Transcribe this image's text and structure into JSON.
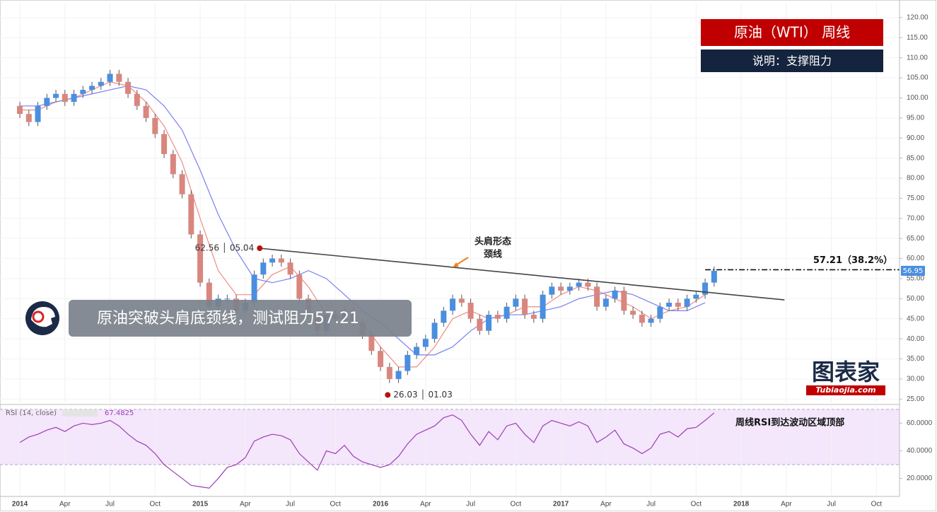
{
  "chart_data": [
    {
      "type": "candlestick",
      "title": "原油（WTI） 周线",
      "subtitle": "说明：支撑阻力",
      "headline": "原油突破头肩底颈线，测试阻力57.21",
      "x": [
        2014,
        2014.05,
        2014.1,
        2014.15,
        2014.2,
        2014.25,
        2014.3,
        2014.35,
        2014.4,
        2014.45,
        2014.5,
        2014.55,
        2014.6,
        2014.65,
        2014.7,
        2014.75,
        2014.8,
        2014.85,
        2014.9,
        2014.95,
        2015,
        2015.05,
        2015.1,
        2015.15,
        2015.2,
        2015.25,
        2015.3,
        2015.35,
        2015.4,
        2015.45,
        2015.5,
        2015.55,
        2015.6,
        2015.65,
        2015.7,
        2015.75,
        2015.8,
        2015.85,
        2015.9,
        2015.95,
        2016,
        2016.05,
        2016.1,
        2016.15,
        2016.2,
        2016.25,
        2016.3,
        2016.35,
        2016.4,
        2016.45,
        2016.5,
        2016.55,
        2016.6,
        2016.65,
        2016.7,
        2016.75,
        2016.8,
        2016.85,
        2016.9,
        2016.95,
        2017,
        2017.05,
        2017.1,
        2017.15,
        2017.2,
        2017.25,
        2017.3,
        2017.35,
        2017.4,
        2017.45,
        2017.5,
        2017.55,
        2017.6,
        2017.65,
        2017.7,
        2017.75,
        2017.8,
        2017.85
      ],
      "open": [
        98,
        96,
        94,
        98,
        100,
        101,
        99,
        101,
        102,
        103,
        104,
        106,
        104,
        101,
        98,
        95,
        91,
        86,
        81,
        76,
        66,
        54,
        48,
        50,
        50,
        47,
        49,
        56,
        59,
        60,
        59,
        56,
        50,
        46,
        42,
        46,
        45,
        47,
        44,
        41,
        37,
        33,
        30,
        32,
        36,
        38,
        40,
        44,
        47,
        50,
        49,
        45,
        42,
        46,
        45,
        48,
        50,
        46,
        45,
        51,
        53,
        52,
        53,
        54,
        53,
        48,
        50,
        52,
        47,
        46,
        44,
        45,
        48,
        49,
        48,
        50,
        51,
        54
      ],
      "high": [
        99,
        97,
        99,
        101,
        102,
        102,
        102,
        103,
        104,
        105,
        107,
        107,
        105,
        102,
        99,
        96,
        92,
        87,
        82,
        77,
        67,
        55,
        51,
        51,
        51,
        50,
        57,
        60,
        61,
        61,
        60,
        57,
        51,
        47,
        47,
        47,
        48,
        48,
        45,
        42,
        38,
        34,
        33,
        37,
        39,
        41,
        45,
        48,
        51,
        51,
        50,
        46,
        47,
        47,
        49,
        51,
        51,
        47,
        52,
        54,
        54,
        54,
        55,
        55,
        54,
        51,
        53,
        53,
        48,
        47,
        46,
        49,
        50,
        50,
        51,
        52,
        55,
        58
      ],
      "low": [
        95,
        93,
        93,
        97,
        99,
        98,
        98,
        100,
        101,
        102,
        103,
        103,
        100,
        97,
        94,
        90,
        85,
        80,
        75,
        65,
        53,
        47,
        47,
        49,
        46,
        46,
        48,
        55,
        58,
        58,
        55,
        49,
        45,
        41,
        41,
        44,
        44,
        43,
        40,
        36,
        32,
        29,
        29,
        31,
        35,
        37,
        39,
        43,
        46,
        48,
        44,
        41,
        41,
        44,
        44,
        47,
        45,
        44,
        44,
        50,
        51,
        51,
        52,
        52,
        47,
        47,
        49,
        46,
        45,
        43,
        43,
        44,
        47,
        47,
        47,
        49,
        50,
        53
      ],
      "close": [
        96,
        94,
        98,
        100,
        101,
        99,
        101,
        102,
        103,
        104,
        106,
        104,
        101,
        98,
        95,
        91,
        86,
        81,
        76,
        66,
        54,
        48,
        50,
        50,
        47,
        49,
        56,
        59,
        60,
        59,
        56,
        50,
        46,
        42,
        46,
        45,
        47,
        44,
        41,
        37,
        33,
        30,
        32,
        36,
        38,
        40,
        44,
        47,
        50,
        49,
        45,
        42,
        46,
        45,
        48,
        50,
        46,
        45,
        51,
        53,
        52,
        53,
        54,
        53,
        48,
        50,
        52,
        47,
        46,
        44,
        45,
        48,
        49,
        48,
        50,
        51,
        54,
        56.95
      ],
      "up_color": "#4a8fe0",
      "down_color": "#d9867f",
      "overlay_x": [
        2014,
        2014.1,
        2014.2,
        2014.3,
        2014.4,
        2014.5,
        2014.6,
        2014.7,
        2014.8,
        2014.9,
        2015,
        2015.1,
        2015.2,
        2015.3,
        2015.4,
        2015.5,
        2015.6,
        2015.7,
        2015.8,
        2015.9,
        2016,
        2016.1,
        2016.2,
        2016.3,
        2016.4,
        2016.5,
        2016.6,
        2016.7,
        2016.8,
        2016.9,
        2017,
        2017.1,
        2017.2,
        2017.3,
        2017.4,
        2017.5,
        2017.6,
        2017.7,
        2017.8
      ],
      "overlays": [
        {
          "color": "#f08a84",
          "values": [
            97,
            97,
            99,
            100,
            102,
            104,
            103,
            99,
            93,
            84,
            70,
            57,
            51,
            51,
            56,
            58,
            53,
            46,
            45,
            44,
            38,
            33,
            33,
            38,
            45,
            47,
            45,
            46,
            48,
            48,
            51,
            53,
            52,
            50,
            48,
            45,
            47,
            48,
            51
          ]
        },
        {
          "color": "#7a7ff0",
          "values": [
            98,
            98,
            99,
            100,
            101,
            102,
            103,
            102,
            98,
            92,
            82,
            71,
            62,
            55,
            54,
            55,
            57,
            55,
            51,
            47,
            44,
            40,
            36,
            36,
            38,
            42,
            45,
            46,
            46,
            47,
            48,
            50,
            51,
            52,
            51,
            49,
            47,
            47,
            49
          ]
        }
      ],
      "neckline": {
        "x": [
          2015.33,
          2018.24
        ],
        "values": [
          62.56,
          49.7
        ]
      },
      "neckline_label": [
        "头肩形态",
        "颈线"
      ],
      "points": [
        {
          "label": "62.56 │ 05.04",
          "x": 2015.33,
          "value": 62.56
        },
        {
          "label": "26.03 │ 01.03",
          "x": 2016.04,
          "value": 26.03
        }
      ],
      "point_color": "#b3140c",
      "resistance": {
        "label": "57.21（38.2%）",
        "value": 57.21,
        "x_start": 2017.8
      },
      "xlim": [
        2013.89,
        2018.878
      ],
      "xticks": [
        2014,
        {
          "value": 2014.25,
          "label": "Apr"
        },
        {
          "value": 2014.5,
          "label": "Jul"
        },
        {
          "value": 2014.75,
          "label": "Oct"
        },
        2015,
        {
          "value": 2015.25,
          "label": "Apr"
        },
        {
          "value": 2015.5,
          "label": "Jul"
        },
        {
          "value": 2015.75,
          "label": "Oct"
        },
        2016,
        {
          "value": 2016.25,
          "label": "Apr"
        },
        {
          "value": 2016.5,
          "label": "Jul"
        },
        {
          "value": 2016.75,
          "label": "Oct"
        },
        2017,
        {
          "value": 2017.25,
          "label": "Apr"
        },
        {
          "value": 2017.5,
          "label": "Jul"
        },
        {
          "value": 2017.75,
          "label": "Oct"
        },
        2018,
        {
          "value": 2018.25,
          "label": "Apr"
        },
        {
          "value": 2018.5,
          "label": "Jul"
        },
        {
          "value": 2018.75,
          "label": "Oct"
        }
      ],
      "ylim": [
        24,
        123.5
      ],
      "yticks": [
        {
          "value": 25,
          "label": "25.00"
        },
        {
          "value": 30,
          "label": "30.00"
        },
        {
          "value": 35,
          "label": "35.00"
        },
        {
          "value": 40,
          "label": "40.00"
        },
        {
          "value": 45,
          "label": "45.00"
        },
        {
          "value": 50,
          "label": "50.00"
        },
        {
          "value": 55,
          "label": "55.00"
        },
        {
          "value": 60,
          "label": "60.00"
        },
        {
          "value": 65,
          "label": "65.00"
        },
        {
          "value": 70,
          "label": "70.00"
        },
        {
          "value": 75,
          "label": "75.00"
        },
        {
          "value": 80,
          "label": "80.00"
        },
        {
          "value": 85,
          "label": "85.00"
        },
        {
          "value": 90,
          "label": "90.00"
        },
        {
          "value": 95,
          "label": "95.00"
        },
        {
          "value": 100,
          "label": "100.00"
        },
        {
          "value": 105,
          "label": "105.00"
        },
        {
          "value": 110,
          "label": "110.00"
        },
        {
          "value": 115,
          "label": "115.00"
        },
        {
          "value": 120,
          "label": "120.00"
        }
      ],
      "grid": true,
      "watermark": [
        "图表家",
        "Tubiaojia.com"
      ]
    },
    {
      "type": "line",
      "title": "RSI (14, close)",
      "annotation": "周线RSI到达波动区域顶部",
      "color": "#9c3fb5",
      "values": [
        46,
        50,
        52,
        55,
        57,
        54,
        58,
        60,
        59,
        60,
        62,
        58,
        52,
        47,
        44,
        38,
        30,
        25,
        20,
        15,
        14,
        13,
        20,
        28,
        30,
        35,
        47,
        50,
        52,
        51,
        48,
        38,
        32,
        26,
        40,
        38,
        44,
        36,
        32,
        30,
        28,
        30,
        36,
        45,
        52,
        55,
        58,
        64,
        66,
        62,
        52,
        44,
        54,
        48,
        58,
        60,
        52,
        46,
        58,
        62,
        60,
        58,
        61,
        58,
        46,
        50,
        55,
        45,
        42,
        38,
        42,
        52,
        54,
        50,
        56,
        57,
        62,
        67.4825
      ],
      "band": [
        30,
        70
      ],
      "band_color": "#f4e6fb",
      "ylim": [
        8,
        72
      ],
      "yticks": [
        {
          "value": 20,
          "label": "20.0000"
        },
        {
          "value": 40,
          "label": "40.0000"
        },
        {
          "value": 60,
          "label": "60.0000"
        }
      ]
    }
  ]
}
